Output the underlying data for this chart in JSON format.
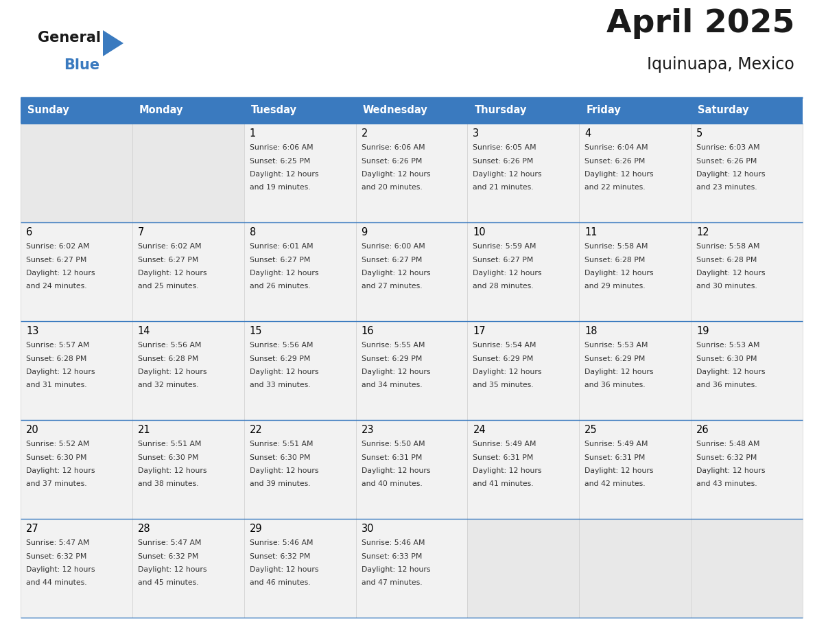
{
  "title": "April 2025",
  "subtitle": "Iquinuapa, Mexico",
  "header_color": "#3a7abf",
  "header_text_color": "#ffffff",
  "cell_bg_color": "#f2f2f2",
  "cell_empty_color": "#e8e8e8",
  "day_number_color": "#000000",
  "day_text_color": "#333333",
  "border_color": "#3a7abf",
  "line_color": "#3a7abf",
  "days_of_week": [
    "Sunday",
    "Monday",
    "Tuesday",
    "Wednesday",
    "Thursday",
    "Friday",
    "Saturday"
  ],
  "weeks": [
    [
      {
        "day": "",
        "sunrise": "",
        "sunset": "",
        "daylight": ""
      },
      {
        "day": "",
        "sunrise": "",
        "sunset": "",
        "daylight": ""
      },
      {
        "day": "1",
        "sunrise": "6:06 AM",
        "sunset": "6:25 PM",
        "daylight": "12 hours and 19 minutes."
      },
      {
        "day": "2",
        "sunrise": "6:06 AM",
        "sunset": "6:26 PM",
        "daylight": "12 hours and 20 minutes."
      },
      {
        "day": "3",
        "sunrise": "6:05 AM",
        "sunset": "6:26 PM",
        "daylight": "12 hours and 21 minutes."
      },
      {
        "day": "4",
        "sunrise": "6:04 AM",
        "sunset": "6:26 PM",
        "daylight": "12 hours and 22 minutes."
      },
      {
        "day": "5",
        "sunrise": "6:03 AM",
        "sunset": "6:26 PM",
        "daylight": "12 hours and 23 minutes."
      }
    ],
    [
      {
        "day": "6",
        "sunrise": "6:02 AM",
        "sunset": "6:27 PM",
        "daylight": "12 hours and 24 minutes."
      },
      {
        "day": "7",
        "sunrise": "6:02 AM",
        "sunset": "6:27 PM",
        "daylight": "12 hours and 25 minutes."
      },
      {
        "day": "8",
        "sunrise": "6:01 AM",
        "sunset": "6:27 PM",
        "daylight": "12 hours and 26 minutes."
      },
      {
        "day": "9",
        "sunrise": "6:00 AM",
        "sunset": "6:27 PM",
        "daylight": "12 hours and 27 minutes."
      },
      {
        "day": "10",
        "sunrise": "5:59 AM",
        "sunset": "6:27 PM",
        "daylight": "12 hours and 28 minutes."
      },
      {
        "day": "11",
        "sunrise": "5:58 AM",
        "sunset": "6:28 PM",
        "daylight": "12 hours and 29 minutes."
      },
      {
        "day": "12",
        "sunrise": "5:58 AM",
        "sunset": "6:28 PM",
        "daylight": "12 hours and 30 minutes."
      }
    ],
    [
      {
        "day": "13",
        "sunrise": "5:57 AM",
        "sunset": "6:28 PM",
        "daylight": "12 hours and 31 minutes."
      },
      {
        "day": "14",
        "sunrise": "5:56 AM",
        "sunset": "6:28 PM",
        "daylight": "12 hours and 32 minutes."
      },
      {
        "day": "15",
        "sunrise": "5:56 AM",
        "sunset": "6:29 PM",
        "daylight": "12 hours and 33 minutes."
      },
      {
        "day": "16",
        "sunrise": "5:55 AM",
        "sunset": "6:29 PM",
        "daylight": "12 hours and 34 minutes."
      },
      {
        "day": "17",
        "sunrise": "5:54 AM",
        "sunset": "6:29 PM",
        "daylight": "12 hours and 35 minutes."
      },
      {
        "day": "18",
        "sunrise": "5:53 AM",
        "sunset": "6:29 PM",
        "daylight": "12 hours and 36 minutes."
      },
      {
        "day": "19",
        "sunrise": "5:53 AM",
        "sunset": "6:30 PM",
        "daylight": "12 hours and 36 minutes."
      }
    ],
    [
      {
        "day": "20",
        "sunrise": "5:52 AM",
        "sunset": "6:30 PM",
        "daylight": "12 hours and 37 minutes."
      },
      {
        "day": "21",
        "sunrise": "5:51 AM",
        "sunset": "6:30 PM",
        "daylight": "12 hours and 38 minutes."
      },
      {
        "day": "22",
        "sunrise": "5:51 AM",
        "sunset": "6:30 PM",
        "daylight": "12 hours and 39 minutes."
      },
      {
        "day": "23",
        "sunrise": "5:50 AM",
        "sunset": "6:31 PM",
        "daylight": "12 hours and 40 minutes."
      },
      {
        "day": "24",
        "sunrise": "5:49 AM",
        "sunset": "6:31 PM",
        "daylight": "12 hours and 41 minutes."
      },
      {
        "day": "25",
        "sunrise": "5:49 AM",
        "sunset": "6:31 PM",
        "daylight": "12 hours and 42 minutes."
      },
      {
        "day": "26",
        "sunrise": "5:48 AM",
        "sunset": "6:32 PM",
        "daylight": "12 hours and 43 minutes."
      }
    ],
    [
      {
        "day": "27",
        "sunrise": "5:47 AM",
        "sunset": "6:32 PM",
        "daylight": "12 hours and 44 minutes."
      },
      {
        "day": "28",
        "sunrise": "5:47 AM",
        "sunset": "6:32 PM",
        "daylight": "12 hours and 45 minutes."
      },
      {
        "day": "29",
        "sunrise": "5:46 AM",
        "sunset": "6:32 PM",
        "daylight": "12 hours and 46 minutes."
      },
      {
        "day": "30",
        "sunrise": "5:46 AM",
        "sunset": "6:33 PM",
        "daylight": "12 hours and 47 minutes."
      },
      {
        "day": "",
        "sunrise": "",
        "sunset": "",
        "daylight": ""
      },
      {
        "day": "",
        "sunrise": "",
        "sunset": "",
        "daylight": ""
      },
      {
        "day": "",
        "sunrise": "",
        "sunset": "",
        "daylight": ""
      }
    ]
  ],
  "logo_text_general": "General",
  "logo_text_blue": "Blue",
  "logo_general_color": "#1a1a1a",
  "logo_blue_color": "#3a7abf",
  "fig_width": 11.88,
  "fig_height": 9.18,
  "dpi": 100
}
